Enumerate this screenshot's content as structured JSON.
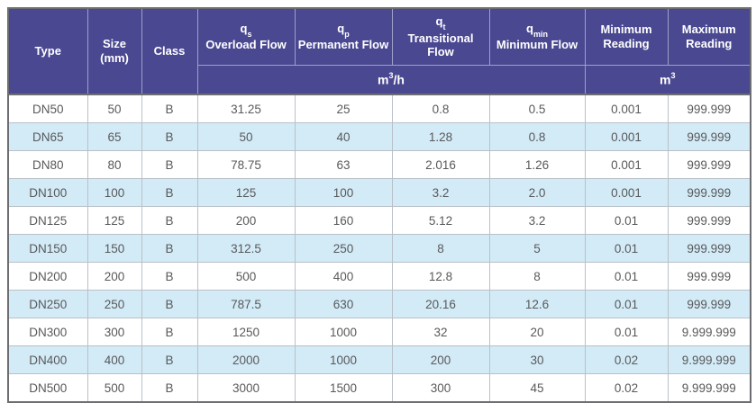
{
  "table": {
    "title": "flow-and-reading-specifications",
    "columns": [
      {
        "id": "type",
        "label": "Type"
      },
      {
        "id": "size",
        "label": "Size",
        "label2": "(mm)"
      },
      {
        "id": "class",
        "label": "Class"
      },
      {
        "id": "qs",
        "symbol": "q",
        "subscript": "s",
        "label": "Overload Flow",
        "group": "flow"
      },
      {
        "id": "qp",
        "symbol": "q",
        "subscript": "p",
        "label": "Permanent Flow",
        "group": "flow"
      },
      {
        "id": "qt",
        "symbol": "q",
        "subscript": "t",
        "label": "Transitional Flow",
        "group": "flow"
      },
      {
        "id": "qmin",
        "symbol": "q",
        "subscript": "min",
        "label": "Minimum Flow",
        "group": "flow"
      },
      {
        "id": "min_reading",
        "label": "Minimum Reading",
        "group": "reading"
      },
      {
        "id": "max_reading",
        "label": "Maximum Reading",
        "group": "reading"
      }
    ],
    "units": [
      {
        "group": "flow",
        "colspan": 4,
        "base": "m",
        "sup": "3",
        "suffix": "/h"
      },
      {
        "group": "reading",
        "colspan": 2,
        "base": "m",
        "sup": "3",
        "suffix": ""
      }
    ],
    "rows": [
      [
        "DN50",
        "50",
        "B",
        "31.25",
        "25",
        "0.8",
        "0.5",
        "0.001",
        "999.999"
      ],
      [
        "DN65",
        "65",
        "B",
        "50",
        "40",
        "1.28",
        "0.8",
        "0.001",
        "999.999"
      ],
      [
        "DN80",
        "80",
        "B",
        "78.75",
        "63",
        "2.016",
        "1.26",
        "0.001",
        "999.999"
      ],
      [
        "DN100",
        "100",
        "B",
        "125",
        "100",
        "3.2",
        "2.0",
        "0.001",
        "999.999"
      ],
      [
        "DN125",
        "125",
        "B",
        "200",
        "160",
        "5.12",
        "3.2",
        "0.01",
        "999.999"
      ],
      [
        "DN150",
        "150",
        "B",
        "312.5",
        "250",
        "8",
        "5",
        "0.01",
        "999.999"
      ],
      [
        "DN200",
        "200",
        "B",
        "500",
        "400",
        "12.8",
        "8",
        "0.01",
        "999.999"
      ],
      [
        "DN250",
        "250",
        "B",
        "787.5",
        "630",
        "20.16",
        "12.6",
        "0.01",
        "999.999"
      ],
      [
        "DN300",
        "300",
        "B",
        "1250",
        "1000",
        "32",
        "20",
        "0.01",
        "9.999.999"
      ],
      [
        "DN400",
        "400",
        "B",
        "2000",
        "1000",
        "200",
        "30",
        "0.02",
        "9.999.999"
      ],
      [
        "DN500",
        "500",
        "B",
        "3000",
        "1500",
        "300",
        "45",
        "0.02",
        "9.999.999"
      ]
    ],
    "colors": {
      "header_background": "#4a4891",
      "header_text": "#ffffff",
      "alt_row_background": "#d3ebf7",
      "row_background": "#ffffff",
      "data_text": "#58595b",
      "grid_line": "#b9c0c8",
      "outer_border": "#6d6e71"
    }
  }
}
